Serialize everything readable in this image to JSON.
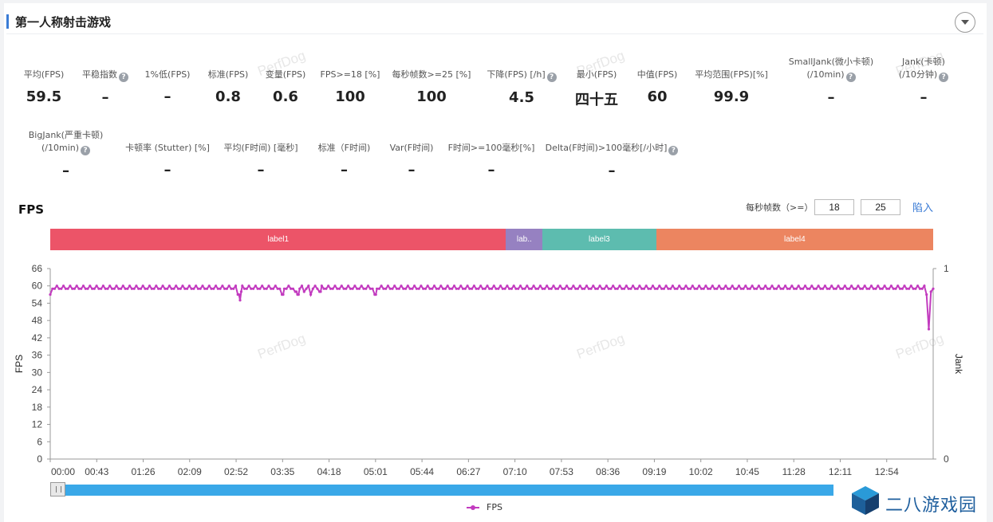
{
  "header": {
    "title": "第一人称射击游戏"
  },
  "metrics_row1": [
    {
      "label": "平均(FPS)",
      "value": "59.5",
      "help": false
    },
    {
      "label": "平稳指数",
      "value": "–",
      "help": true
    },
    {
      "label": "1%低(FPS)",
      "value": "–",
      "help": false
    },
    {
      "label": "标准(FPS)",
      "value": "0.8",
      "help": false
    },
    {
      "label": "变量(FPS)",
      "value": "0.6",
      "help": false
    },
    {
      "label": "FPS>=18 [%]",
      "value": "100",
      "help": false
    },
    {
      "label": "每秒帧数>=25 [%]",
      "value": "100",
      "help": false
    },
    {
      "label": "下降(FPS) [/h]",
      "value": "4.5",
      "help": true
    },
    {
      "label": "最小(FPS)",
      "value": "四十五",
      "help": false
    },
    {
      "label": "中值(FPS)",
      "value": "60",
      "help": false
    },
    {
      "label": "平均范围(FPS)[%]",
      "value": "99.9",
      "help": false
    },
    {
      "label": "SmallJank(微小卡顿)",
      "label2": "(/10min)",
      "value": "–",
      "help": true
    },
    {
      "label": "Jank(卡顿)",
      "label2": "(/10分钟)",
      "value": "–",
      "help": true
    }
  ],
  "metrics_row2": [
    {
      "label": "BigJank(严重卡顿)",
      "label2": "(/10min)",
      "value": "–",
      "help": true
    },
    {
      "label": "卡顿率 (Stutter) [%]",
      "value": "–",
      "help": false
    },
    {
      "label": "平均(F时间) [毫秒]",
      "value": "–",
      "help": false
    },
    {
      "label": "标准（F时间)",
      "value": "–",
      "help": false
    },
    {
      "label": "Var(F时间)",
      "value": "–",
      "help": false
    },
    {
      "label": "F时间>=100毫秒[%]",
      "value": "–",
      "help": false
    },
    {
      "label": "Delta(F时间)>100毫秒[/小时]",
      "value": "–",
      "help": true
    }
  ],
  "watermark": "PerfDog",
  "fps_section": {
    "title": "FPS",
    "threshold_label": "每秒帧数（>=）",
    "threshold1": "18",
    "threshold2": "25",
    "import_label": "陷入"
  },
  "labels": [
    {
      "name": "label1",
      "color": "#ec5468"
    },
    {
      "name": "lab..",
      "color": "#9681c1"
    },
    {
      "name": "label3",
      "color": "#5dbcaf"
    },
    {
      "name": "label4",
      "color": "#ec8560"
    }
  ],
  "legend": {
    "label": "FPS"
  },
  "brand": {
    "name": "二八游戏园"
  },
  "colors": {
    "accent": "#3a7bd5",
    "series": "#c23bbf",
    "scrollbar": "#3aa8e8"
  },
  "chart_data": {
    "type": "line",
    "ylabel": "FPS",
    "y2label": "Jank",
    "ylim": [
      0,
      66
    ],
    "yticks": [
      0,
      6,
      12,
      18,
      24,
      30,
      36,
      42,
      48,
      54,
      60,
      66
    ],
    "y2ticks": [
      0,
      1
    ],
    "xticks": [
      "00:00",
      "00:43",
      "01:26",
      "02:09",
      "02:52",
      "03:35",
      "04:18",
      "05:01",
      "05:44",
      "06:27",
      "07:10",
      "07:53",
      "08:36",
      "09:19",
      "10:02",
      "10:45",
      "11:28",
      "12:11",
      "12:54"
    ],
    "xlim_seconds": [
      0,
      800
    ],
    "label_spans_seconds": [
      [
        0,
        413
      ],
      [
        413,
        446
      ],
      [
        446,
        549
      ],
      [
        549,
        800
      ]
    ],
    "series": [
      {
        "name": "FPS",
        "baseline": 59,
        "dips": [
          {
            "t": 0,
            "v": 57
          },
          {
            "t": 171,
            "v": 57
          },
          {
            "t": 172,
            "v": 55
          },
          {
            "t": 173,
            "v": 58
          },
          {
            "t": 211,
            "v": 57
          },
          {
            "t": 223,
            "v": 58
          },
          {
            "t": 225,
            "v": 57
          },
          {
            "t": 230,
            "v": 58
          },
          {
            "t": 236,
            "v": 57
          },
          {
            "t": 245,
            "v": 58
          },
          {
            "t": 295,
            "v": 57
          },
          {
            "t": 794,
            "v": 57
          },
          {
            "t": 796,
            "v": 45
          },
          {
            "t": 798,
            "v": 58
          }
        ]
      }
    ]
  }
}
